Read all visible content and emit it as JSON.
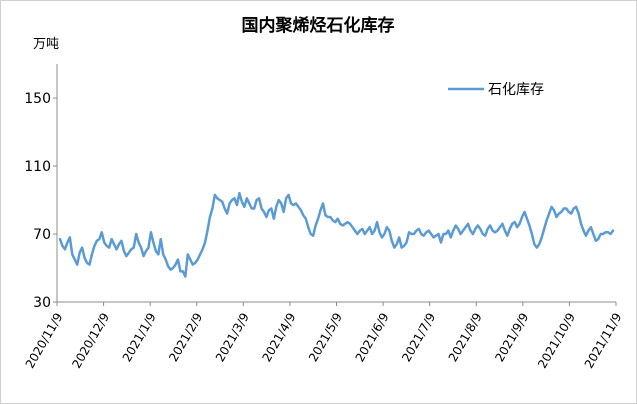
{
  "chart_data": {
    "type": "line",
    "title": "国内聚烯烃石化库存",
    "unit": "万吨",
    "legend_position": "top-right",
    "grid": false,
    "ylim": [
      30,
      170
    ],
    "yticks": [
      30,
      70,
      110,
      150
    ],
    "x_ticks": [
      "2020/11/9",
      "2020/12/9",
      "2021/1/9",
      "2021/2/9",
      "2021/3/9",
      "2021/4/9",
      "2021/5/9",
      "2021/6/9",
      "2021/7/9",
      "2021/8/9",
      "2021/9/9",
      "2021/10/9",
      "2021/11/9"
    ],
    "series": [
      {
        "name": "石化库存",
        "color": "#5b9bd5",
        "values": [
          67,
          63,
          61,
          65,
          68,
          58,
          55,
          52,
          59,
          62,
          56,
          53,
          52,
          58,
          63,
          66,
          67,
          71,
          65,
          63,
          62,
          67,
          64,
          61,
          64,
          66,
          60,
          57,
          59,
          61,
          62,
          70,
          65,
          62,
          57,
          60,
          62,
          71,
          65,
          60,
          58,
          67,
          58,
          55,
          51,
          49,
          50,
          52,
          55,
          48,
          48,
          45,
          58,
          55,
          52,
          53,
          55,
          58,
          61,
          65,
          72,
          80,
          85,
          93,
          91,
          90,
          89,
          85,
          82,
          88,
          90,
          91,
          87,
          94,
          89,
          86,
          91,
          88,
          85,
          85,
          90,
          91,
          85,
          83,
          80,
          84,
          85,
          79,
          86,
          90,
          88,
          83,
          91,
          93,
          88,
          87,
          88,
          86,
          84,
          81,
          79,
          74,
          70,
          69,
          75,
          79,
          84,
          88,
          81,
          80,
          80,
          78,
          77,
          79,
          76,
          75,
          76,
          77,
          76,
          74,
          72,
          70,
          72,
          73,
          70,
          72,
          74,
          70,
          72,
          77,
          71,
          68,
          70,
          74,
          72,
          66,
          62,
          64,
          68,
          62,
          63,
          65,
          71,
          70,
          70,
          72,
          73,
          70,
          69,
          71,
          72,
          70,
          68,
          69,
          70,
          65,
          70,
          70,
          72,
          68,
          72,
          75,
          73,
          70,
          72,
          74,
          76,
          72,
          70,
          73,
          75,
          73,
          70,
          69,
          73,
          75,
          72,
          71,
          72,
          74,
          76,
          72,
          69,
          73,
          76,
          77,
          74,
          76,
          80,
          83,
          79,
          75,
          70,
          64,
          62,
          64,
          68,
          73,
          78,
          82,
          86,
          84,
          80,
          82,
          83,
          85,
          85,
          83,
          82,
          85,
          86,
          82,
          76,
          72,
          69,
          72,
          74,
          70,
          66,
          67,
          70,
          70,
          71,
          71,
          70,
          72
        ]
      }
    ]
  }
}
